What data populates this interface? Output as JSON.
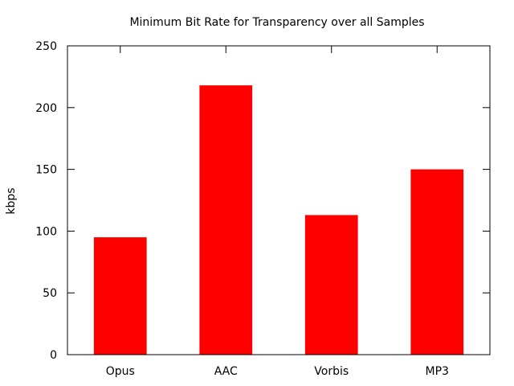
{
  "chart_data": {
    "type": "bar",
    "title": "Minimum Bit Rate for Transparency over all Samples",
    "xlabel": "",
    "ylabel": "kbps",
    "categories": [
      "Opus",
      "AAC",
      "Vorbis",
      "MP3"
    ],
    "values": [
      95,
      218,
      113,
      150
    ],
    "ylim": [
      0,
      250
    ],
    "yticks": [
      0,
      50,
      100,
      150,
      200,
      250
    ],
    "bar_color": "#ff0000",
    "grid": false,
    "legend": "none"
  }
}
